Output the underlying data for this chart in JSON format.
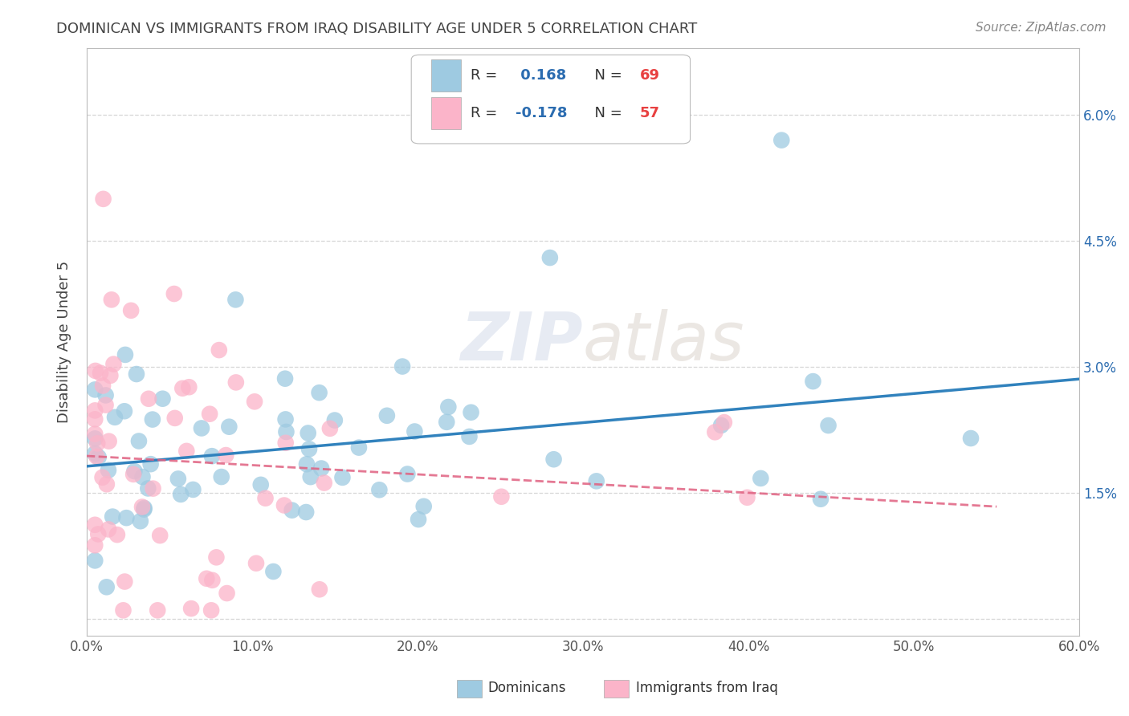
{
  "title": "DOMINICAN VS IMMIGRANTS FROM IRAQ DISABILITY AGE UNDER 5 CORRELATION CHART",
  "source": "Source: ZipAtlas.com",
  "ylabel": "Disability Age Under 5",
  "xlim": [
    0.0,
    0.6
  ],
  "ylim": [
    -0.002,
    0.068
  ],
  "xtick_labels": [
    "0.0%",
    "10.0%",
    "20.0%",
    "30.0%",
    "40.0%",
    "50.0%",
    "60.0%"
  ],
  "xtick_values": [
    0.0,
    0.1,
    0.2,
    0.3,
    0.4,
    0.5,
    0.6
  ],
  "ytick_labels": [
    "",
    "1.5%",
    "3.0%",
    "4.5%",
    "6.0%"
  ],
  "ytick_values": [
    0.0,
    0.015,
    0.03,
    0.045,
    0.06
  ],
  "color_blue": "#9ecae1",
  "color_pink": "#fbb4c9",
  "color_line_blue": "#3182bd",
  "color_line_pink": "#e06080",
  "background_color": "#ffffff",
  "legend_box_color": "#e8edf5",
  "legend_r1_label": "R = ",
  "legend_r1_val": " 0.168",
  "legend_n1_label": "N = ",
  "legend_n1_val": "69",
  "legend_r2_label": "R = ",
  "legend_r2_val": "-0.178",
  "legend_n2_label": "N = ",
  "legend_n2_val": "57",
  "val_color": "#2b6cb0",
  "n_color": "#e84040"
}
